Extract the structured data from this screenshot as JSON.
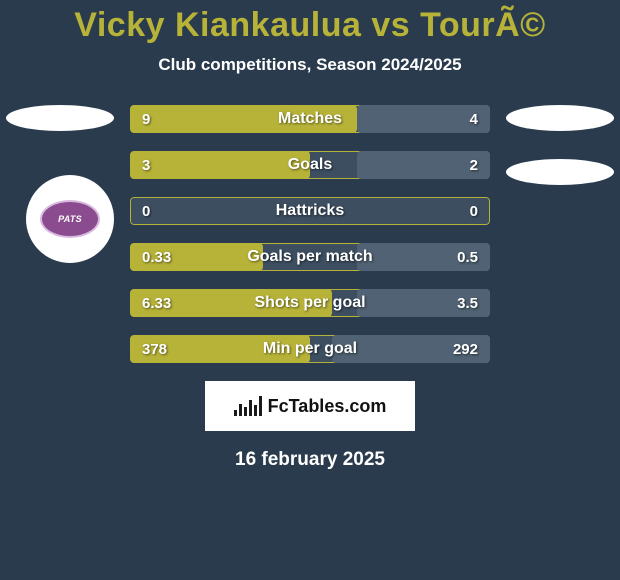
{
  "background_color": "#2a3b4d",
  "title": {
    "text": "Vicky Kiankaulua vs TourÃ©",
    "color": "#b7b338",
    "fontsize": 34
  },
  "subtitle": {
    "text": "Club competitions, Season 2024/2025",
    "fontsize": 17
  },
  "left_badge_text": "PATS",
  "stats": {
    "bar_left_color": "#b7b338",
    "bar_right_color": "#506273",
    "track_color": "#3c4e60",
    "label_fontsize": 16,
    "value_fontsize": 15,
    "rows": [
      {
        "label": "Matches",
        "left": "9",
        "right": "4",
        "left_pct": 63,
        "right_pct": 37
      },
      {
        "label": "Goals",
        "left": "3",
        "right": "2",
        "left_pct": 50,
        "right_pct": 37
      },
      {
        "label": "Hattricks",
        "left": "0",
        "right": "0",
        "left_pct": 0,
        "right_pct": 0
      },
      {
        "label": "Goals per match",
        "left": "0.33",
        "right": "0.5",
        "left_pct": 37,
        "right_pct": 37
      },
      {
        "label": "Shots per goal",
        "left": "6.33",
        "right": "3.5",
        "left_pct": 56,
        "right_pct": 37
      },
      {
        "label": "Min per goal",
        "left": "378",
        "right": "292",
        "left_pct": 50,
        "right_pct": 44
      }
    ]
  },
  "brand": {
    "text": "FcTables.com",
    "fontsize": 18
  },
  "date": {
    "text": "16 february 2025",
    "fontsize": 19
  }
}
